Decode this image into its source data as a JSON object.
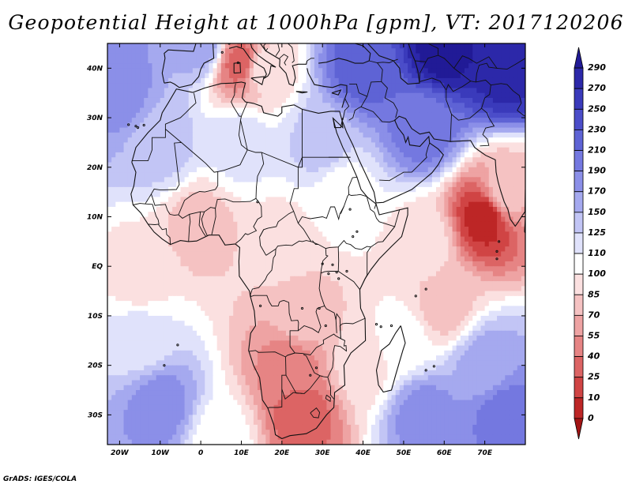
{
  "title": "Geopotential Height at 1000hPa [gpm], VT: 2017120206",
  "footer": "GrADS: IGES/COLA",
  "map": {
    "projection": "latlon",
    "lon_range": [
      -23,
      80
    ],
    "lat_range": [
      -36,
      45
    ],
    "lat_ticks": [
      {
        "value": 40,
        "label": "40N"
      },
      {
        "value": 30,
        "label": "30N"
      },
      {
        "value": 20,
        "label": "20N"
      },
      {
        "value": 10,
        "label": "10N"
      },
      {
        "value": 0,
        "label": "EQ"
      },
      {
        "value": -10,
        "label": "10S"
      },
      {
        "value": -20,
        "label": "20S"
      },
      {
        "value": -30,
        "label": "30S"
      }
    ],
    "lon_ticks": [
      {
        "value": -20,
        "label": "20W"
      },
      {
        "value": -10,
        "label": "10W"
      },
      {
        "value": 0,
        "label": "0"
      },
      {
        "value": 10,
        "label": "10E"
      },
      {
        "value": 20,
        "label": "20E"
      },
      {
        "value": 30,
        "label": "30E"
      },
      {
        "value": 40,
        "label": "40E"
      },
      {
        "value": 50,
        "label": "50E"
      },
      {
        "value": 60,
        "label": "60E"
      },
      {
        "value": 70,
        "label": "70E"
      }
    ]
  },
  "colorbar": {
    "levels": [
      "290",
      "270",
      "250",
      "230",
      "210",
      "190",
      "170",
      "150",
      "125",
      "110",
      "100",
      "85",
      "70",
      "55",
      "40",
      "25",
      "10",
      "0"
    ],
    "colors": [
      "#211a96",
      "#2c28a9",
      "#3a3abb",
      "#4b4dc9",
      "#5e63d5",
      "#7478e0",
      "#8b8fe8",
      "#a5a9ef",
      "#c2c5f5",
      "#e0e2fb",
      "#ffffff",
      "#fbe0e0",
      "#f5c2c2",
      "#eea3a3",
      "#e68484",
      "#dc6464",
      "#d04444",
      "#bd2626",
      "#a21414"
    ]
  },
  "zones": [
    {
      "lon": -23,
      "lat": 45,
      "level": 6
    },
    {
      "lon": 0,
      "lat": 45,
      "level": 7
    },
    {
      "lon": 10,
      "lat": 41,
      "level": 15
    },
    {
      "lon": 15,
      "lat": 40,
      "level": 11
    },
    {
      "lon": 40,
      "lat": 40,
      "level": 4
    },
    {
      "lon": 60,
      "lat": 44,
      "level": 0
    },
    {
      "lon": 75,
      "lat": 40,
      "level": 1
    },
    {
      "lon": 55,
      "lat": 28,
      "level": 5
    },
    {
      "lon": 30,
      "lat": 25,
      "level": 8
    },
    {
      "lon": -10,
      "lat": 25,
      "level": 8
    },
    {
      "lon": -20,
      "lat": 35,
      "level": 6
    },
    {
      "lon": 10,
      "lat": 25,
      "level": 9
    },
    {
      "lon": 0,
      "lat": 8,
      "level": 12
    },
    {
      "lon": 20,
      "lat": 5,
      "level": 11
    },
    {
      "lon": 35,
      "lat": 15,
      "level": 10
    },
    {
      "lon": 55,
      "lat": 5,
      "level": 11
    },
    {
      "lon": 70,
      "lat": 10,
      "level": 17
    },
    {
      "lon": 75,
      "lat": 15,
      "level": 12
    },
    {
      "lon": 60,
      "lat": -8,
      "level": 12
    },
    {
      "lon": -15,
      "lat": -2,
      "level": 11
    },
    {
      "lon": -15,
      "lat": -15,
      "level": 9
    },
    {
      "lon": -10,
      "lat": -28,
      "level": 6
    },
    {
      "lon": 5,
      "lat": -35,
      "level": 10
    },
    {
      "lon": 25,
      "lat": -30,
      "level": 15
    },
    {
      "lon": 22,
      "lat": -20,
      "level": 14
    },
    {
      "lon": 25,
      "lat": -10,
      "level": 12
    },
    {
      "lon": 40,
      "lat": -20,
      "level": 11
    },
    {
      "lon": 50,
      "lat": -15,
      "level": 10
    },
    {
      "lon": 55,
      "lat": -30,
      "level": 6
    },
    {
      "lon": 75,
      "lat": -30,
      "level": 5
    },
    {
      "lon": 70,
      "lat": -20,
      "level": 7
    }
  ]
}
